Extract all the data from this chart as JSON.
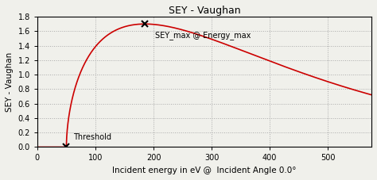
{
  "title": "SEY - Vaughan",
  "xlabel": "Incident energy in eV @  Incident Angle 0.0°",
  "ylabel": "SEY - Vaughan",
  "xlim": [
    0,
    575
  ],
  "ylim": [
    0,
    1.8
  ],
  "yticks": [
    0.0,
    0.2,
    0.4,
    0.6,
    0.8,
    1.0,
    1.2,
    1.4,
    1.6,
    1.8
  ],
  "xticks": [
    0,
    100,
    200,
    300,
    400,
    500
  ],
  "curve_color": "#cc0000",
  "threshold_energy": 50,
  "energy_max": 185,
  "sey_max": 1.7,
  "annotation_peak": "SEY_max @ Energy_max",
  "annotation_threshold": "Threshold",
  "background_color": "#f0f0eb",
  "grid_color": "#aaaaaa",
  "title_fontsize": 9,
  "label_fontsize": 7.5,
  "tick_fontsize": 7,
  "peak_marker_x": 185,
  "peak_marker_y": 1.7,
  "threshold_marker_x": 50,
  "threshold_marker_y": 0.0
}
